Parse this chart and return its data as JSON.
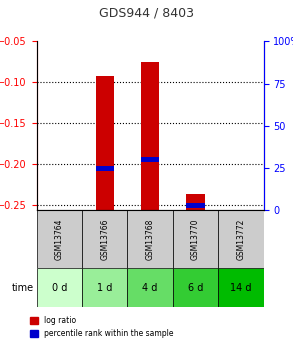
{
  "title": "GDS944 / 8403",
  "samples": [
    "GSM13764",
    "GSM13766",
    "GSM13768",
    "GSM13770",
    "GSM13772"
  ],
  "time_labels": [
    "0 d",
    "1 d",
    "4 d",
    "6 d",
    "14 d"
  ],
  "time_colors": [
    "#ccffcc",
    "#99ee99",
    "#66dd66",
    "#33cc33",
    "#00bb00"
  ],
  "log_ratio": [
    null,
    -0.092,
    -0.075,
    -0.237,
    null
  ],
  "log_ratio_bottom": [
    -0.257,
    -0.257,
    -0.257,
    -0.257,
    -0.257
  ],
  "percentile_rank": [
    null,
    25.0,
    30.0,
    3.0,
    null
  ],
  "ylim_left": [
    -0.257,
    -0.05
  ],
  "ylim_right": [
    0,
    100
  ],
  "yticks_left": [
    -0.25,
    -0.2,
    -0.15,
    -0.1,
    -0.05
  ],
  "yticks_right": [
    0,
    25,
    50,
    75,
    100
  ],
  "bar_color": "#cc0000",
  "marker_color": "#0000cc",
  "bg_color_samples": "#cccccc",
  "grid_color": "#000000",
  "title_color": "#333333"
}
